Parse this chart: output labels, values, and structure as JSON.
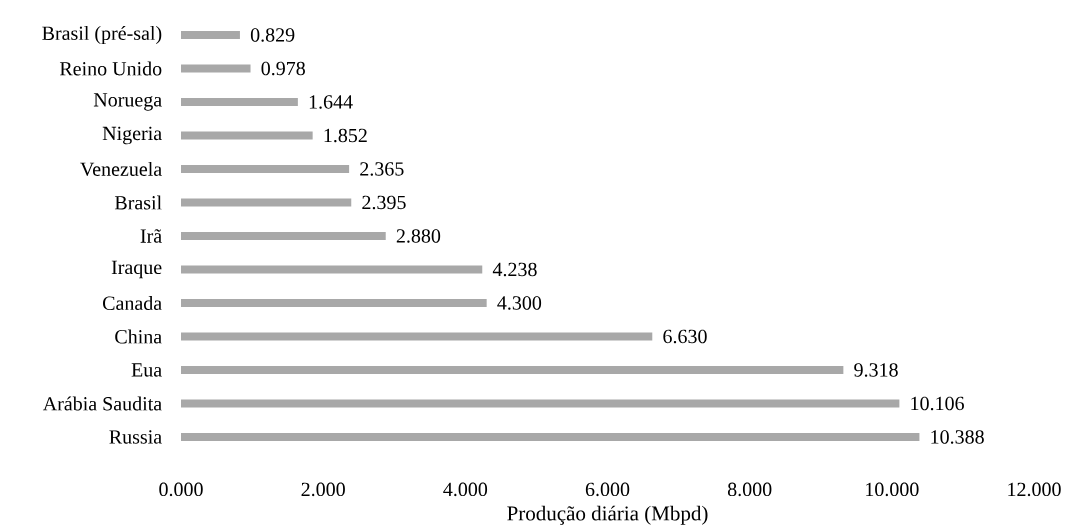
{
  "chart_data": {
    "type": "bar",
    "orientation": "horizontal",
    "xlabel": "Produção diária (Mbpd)",
    "categories": [
      "Brasil (pré-sal)",
      "Reino Unido",
      "Noruega",
      "Nigeria",
      "Venezuela",
      "Brasil",
      "Irã",
      "Iraque",
      "Canada",
      "China",
      "Eua",
      "Arábia Saudita",
      "Russia"
    ],
    "values": [
      0.829,
      0.978,
      1.644,
      1.852,
      2.365,
      2.395,
      2.88,
      4.238,
      4.3,
      6.63,
      9.318,
      10.106,
      10.388
    ],
    "value_labels": [
      "0.829",
      "0.978",
      "1.644",
      "1.852",
      "2.365",
      "2.395",
      "2.880",
      "4.238",
      "4.300",
      "6.630",
      "9.318",
      "10.106",
      "10.388"
    ],
    "color": "#a8a8a8",
    "xlim": [
      0,
      12
    ],
    "xticks": [
      {
        "value": 0,
        "label": "0.000"
      },
      {
        "value": 2,
        "label": "2.000"
      },
      {
        "value": 4,
        "label": "4.000"
      },
      {
        "value": 6,
        "label": "6.000"
      },
      {
        "value": 8,
        "label": "8.000"
      },
      {
        "value": 10,
        "label": "10.000"
      },
      {
        "value": 12,
        "label": "12.000"
      }
    ],
    "grid": false
  }
}
